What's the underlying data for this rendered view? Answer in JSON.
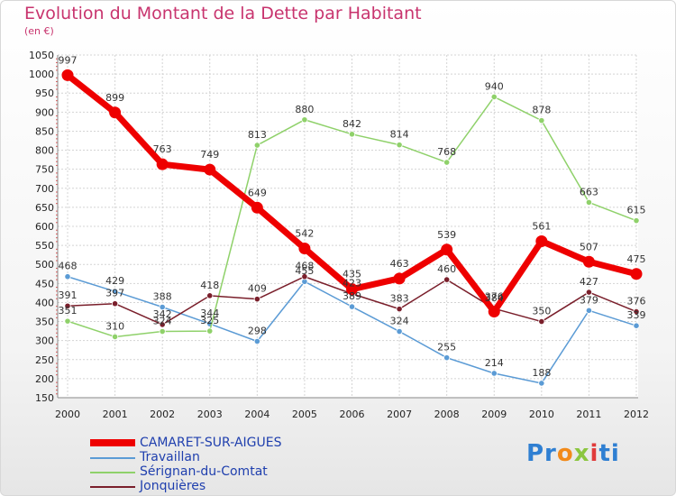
{
  "header": {
    "title": "Evolution du Montant de la Dette par Habitant",
    "subtitle": "(en €)"
  },
  "logo": {
    "text": "Proxiti"
  },
  "colors": {
    "title": "#c8346e",
    "legend_text": "#1f3fae",
    "grid": "#d4d4d4"
  },
  "chart_data": {
    "type": "line",
    "title": "Evolution du Montant de la Dette par Habitant",
    "subtitle": "(en €)",
    "x": [
      "2000",
      "2001",
      "2002",
      "2003",
      "2004",
      "2005",
      "2006",
      "2007",
      "2008",
      "2009",
      "2010",
      "2011",
      "2012"
    ],
    "ylim": [
      150,
      1050
    ],
    "yticks": [
      150,
      200,
      250,
      300,
      350,
      400,
      450,
      500,
      550,
      600,
      650,
      700,
      750,
      800,
      850,
      900,
      950,
      1000,
      1050
    ],
    "grid": true,
    "legend_position": "bottom-left",
    "series": [
      {
        "name": "Travaillan",
        "color": "#5b9bd5",
        "values": [
          468,
          429,
          388,
          344,
          298,
          455,
          389,
          324,
          255,
          214,
          188,
          379,
          339
        ],
        "labels": [
          "468",
          "429",
          "388",
          "344",
          "298",
          "455",
          "389",
          "324",
          "255",
          "214",
          "188",
          "379",
          "339"
        ]
      },
      {
        "name": "Sérignan-du-Comtat",
        "color": "#8fd16a",
        "values": [
          351,
          310,
          324,
          325,
          813,
          880,
          842,
          814,
          768,
          940,
          878,
          663,
          615
        ],
        "labels": [
          "351",
          "310",
          "324",
          "325",
          "813",
          "880",
          "842",
          "814",
          "768",
          "940",
          "878",
          "663",
          "615"
        ]
      },
      {
        "name": "Jonquières",
        "color": "#7a1f2b",
        "values": [
          391,
          397,
          342,
          418,
          409,
          468,
          423,
          383,
          460,
          384,
          350,
          427,
          376
        ],
        "labels": [
          "391",
          "397",
          "342",
          "418",
          "409",
          "468",
          "423",
          "383",
          "460",
          "384",
          "350",
          "427",
          "376"
        ]
      },
      {
        "name": "CAMARET-SUR-AIGUES",
        "color": "#ee0000",
        "values": [
          997,
          899,
          763,
          749,
          649,
          542,
          435,
          463,
          539,
          376,
          561,
          507,
          475
        ],
        "labels": [
          "997",
          "899",
          "763",
          "749",
          "649",
          "542",
          "435",
          "463",
          "539",
          "376",
          "561",
          "507",
          "475"
        ],
        "thick": true
      }
    ]
  }
}
